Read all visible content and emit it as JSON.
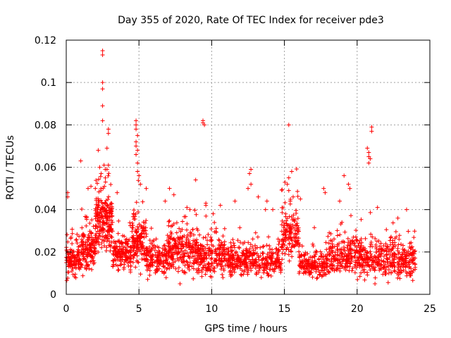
{
  "chart_data": {
    "type": "scatter",
    "title": "Day 355 of 2020, Rate Of TEC Index for receiver pde3",
    "xlabel": "GPS time / hours",
    "ylabel": "ROTI / TECUs",
    "xlim": [
      0,
      25
    ],
    "ylim": [
      0,
      0.12
    ],
    "xticks": [
      "0",
      "5",
      "10",
      "15",
      "20",
      "25"
    ],
    "yticks": [
      "0",
      "0.02",
      "0.04",
      "0.06",
      "0.08",
      "0.1",
      "0.12"
    ],
    "grid": true,
    "marker": "+",
    "color": "#ff0000",
    "highlight_points": [
      {
        "x": 2.5,
        "y": 0.115
      },
      {
        "x": 2.5,
        "y": 0.113
      },
      {
        "x": 2.5,
        "y": 0.1
      },
      {
        "x": 2.5,
        "y": 0.097
      },
      {
        "x": 2.5,
        "y": 0.089
      },
      {
        "x": 2.5,
        "y": 0.082
      },
      {
        "x": 2.2,
        "y": 0.068
      },
      {
        "x": 2.9,
        "y": 0.078
      },
      {
        "x": 2.9,
        "y": 0.076
      },
      {
        "x": 2.8,
        "y": 0.069
      },
      {
        "x": 2.9,
        "y": 0.061
      },
      {
        "x": 2.8,
        "y": 0.059
      },
      {
        "x": 1.0,
        "y": 0.063
      },
      {
        "x": 2.3,
        "y": 0.06
      },
      {
        "x": 2.4,
        "y": 0.057
      },
      {
        "x": 2.6,
        "y": 0.061
      },
      {
        "x": 2.0,
        "y": 0.05
      },
      {
        "x": 2.7,
        "y": 0.053
      },
      {
        "x": 4.8,
        "y": 0.082
      },
      {
        "x": 4.8,
        "y": 0.08
      },
      {
        "x": 4.8,
        "y": 0.078
      },
      {
        "x": 4.9,
        "y": 0.075
      },
      {
        "x": 4.8,
        "y": 0.072
      },
      {
        "x": 4.8,
        "y": 0.07
      },
      {
        "x": 4.9,
        "y": 0.068
      },
      {
        "x": 4.8,
        "y": 0.066
      },
      {
        "x": 4.9,
        "y": 0.062
      },
      {
        "x": 4.9,
        "y": 0.058
      },
      {
        "x": 5.0,
        "y": 0.056
      },
      {
        "x": 5.1,
        "y": 0.052
      },
      {
        "x": 9.4,
        "y": 0.082
      },
      {
        "x": 9.4,
        "y": 0.081
      },
      {
        "x": 9.5,
        "y": 0.08
      },
      {
        "x": 8.9,
        "y": 0.054
      },
      {
        "x": 9.6,
        "y": 0.043
      },
      {
        "x": 9.6,
        "y": 0.042
      },
      {
        "x": 12.7,
        "y": 0.059
      },
      {
        "x": 12.6,
        "y": 0.057
      },
      {
        "x": 12.7,
        "y": 0.052
      },
      {
        "x": 12.5,
        "y": 0.05
      },
      {
        "x": 15.3,
        "y": 0.08
      },
      {
        "x": 15.5,
        "y": 0.058
      },
      {
        "x": 15.3,
        "y": 0.055
      },
      {
        "x": 15.2,
        "y": 0.052
      },
      {
        "x": 15.3,
        "y": 0.049
      },
      {
        "x": 15.6,
        "y": 0.046
      },
      {
        "x": 15.4,
        "y": 0.044
      },
      {
        "x": 21.0,
        "y": 0.079
      },
      {
        "x": 21.0,
        "y": 0.077
      },
      {
        "x": 20.7,
        "y": 0.069
      },
      {
        "x": 20.8,
        "y": 0.067
      },
      {
        "x": 20.8,
        "y": 0.065
      },
      {
        "x": 20.9,
        "y": 0.064
      },
      {
        "x": 20.8,
        "y": 0.062
      },
      {
        "x": 7.1,
        "y": 0.05
      },
      {
        "x": 7.4,
        "y": 0.047
      },
      {
        "x": 6.8,
        "y": 0.044
      },
      {
        "x": 8.3,
        "y": 0.041
      },
      {
        "x": 8.5,
        "y": 0.04
      },
      {
        "x": 10.1,
        "y": 0.038
      },
      {
        "x": 10.6,
        "y": 0.042
      },
      {
        "x": 11.6,
        "y": 0.044
      },
      {
        "x": 13.2,
        "y": 0.046
      },
      {
        "x": 13.7,
        "y": 0.04
      },
      {
        "x": 13.8,
        "y": 0.044
      },
      {
        "x": 14.2,
        "y": 0.04
      },
      {
        "x": 16.1,
        "y": 0.045
      },
      {
        "x": 17.7,
        "y": 0.05
      },
      {
        "x": 17.8,
        "y": 0.048
      },
      {
        "x": 18.8,
        "y": 0.044
      },
      {
        "x": 19.1,
        "y": 0.056
      },
      {
        "x": 19.4,
        "y": 0.052
      },
      {
        "x": 19.5,
        "y": 0.05
      },
      {
        "x": 21.4,
        "y": 0.041
      },
      {
        "x": 22.8,
        "y": 0.036
      },
      {
        "x": 23.4,
        "y": 0.04
      },
      {
        "x": 0.1,
        "y": 0.048
      },
      {
        "x": 0.1,
        "y": 0.046
      },
      {
        "x": 1.5,
        "y": 0.05
      },
      {
        "x": 1.7,
        "y": 0.051
      },
      {
        "x": 3.5,
        "y": 0.048
      },
      {
        "x": 5.5,
        "y": 0.05
      }
    ],
    "segments": [
      {
        "x0": 0.0,
        "x1": 1.0,
        "center": 0.016,
        "spread": 0.006,
        "count": 120
      },
      {
        "x0": 1.0,
        "x1": 2.0,
        "center": 0.022,
        "spread": 0.008,
        "count": 140
      },
      {
        "x0": 2.0,
        "x1": 3.2,
        "center": 0.034,
        "spread": 0.011,
        "count": 220
      },
      {
        "x0": 3.2,
        "x1": 4.5,
        "center": 0.019,
        "spread": 0.006,
        "count": 150
      },
      {
        "x0": 4.5,
        "x1": 5.5,
        "center": 0.026,
        "spread": 0.009,
        "count": 140
      },
      {
        "x0": 5.5,
        "x1": 7.0,
        "center": 0.016,
        "spread": 0.006,
        "count": 150
      },
      {
        "x0": 7.0,
        "x1": 9.0,
        "center": 0.02,
        "spread": 0.008,
        "count": 230
      },
      {
        "x0": 9.0,
        "x1": 11.0,
        "center": 0.018,
        "spread": 0.007,
        "count": 210
      },
      {
        "x0": 11.0,
        "x1": 13.0,
        "center": 0.016,
        "spread": 0.006,
        "count": 200
      },
      {
        "x0": 13.0,
        "x1": 14.8,
        "center": 0.015,
        "spread": 0.005,
        "count": 150
      },
      {
        "x0": 14.8,
        "x1": 16.0,
        "center": 0.028,
        "spread": 0.009,
        "count": 140
      },
      {
        "x0": 16.0,
        "x1": 18.0,
        "center": 0.014,
        "spread": 0.005,
        "count": 180
      },
      {
        "x0": 18.0,
        "x1": 20.0,
        "center": 0.018,
        "spread": 0.007,
        "count": 190
      },
      {
        "x0": 20.0,
        "x1": 22.0,
        "center": 0.017,
        "spread": 0.007,
        "count": 190
      },
      {
        "x0": 22.0,
        "x1": 24.0,
        "center": 0.016,
        "spread": 0.007,
        "count": 200
      }
    ]
  }
}
